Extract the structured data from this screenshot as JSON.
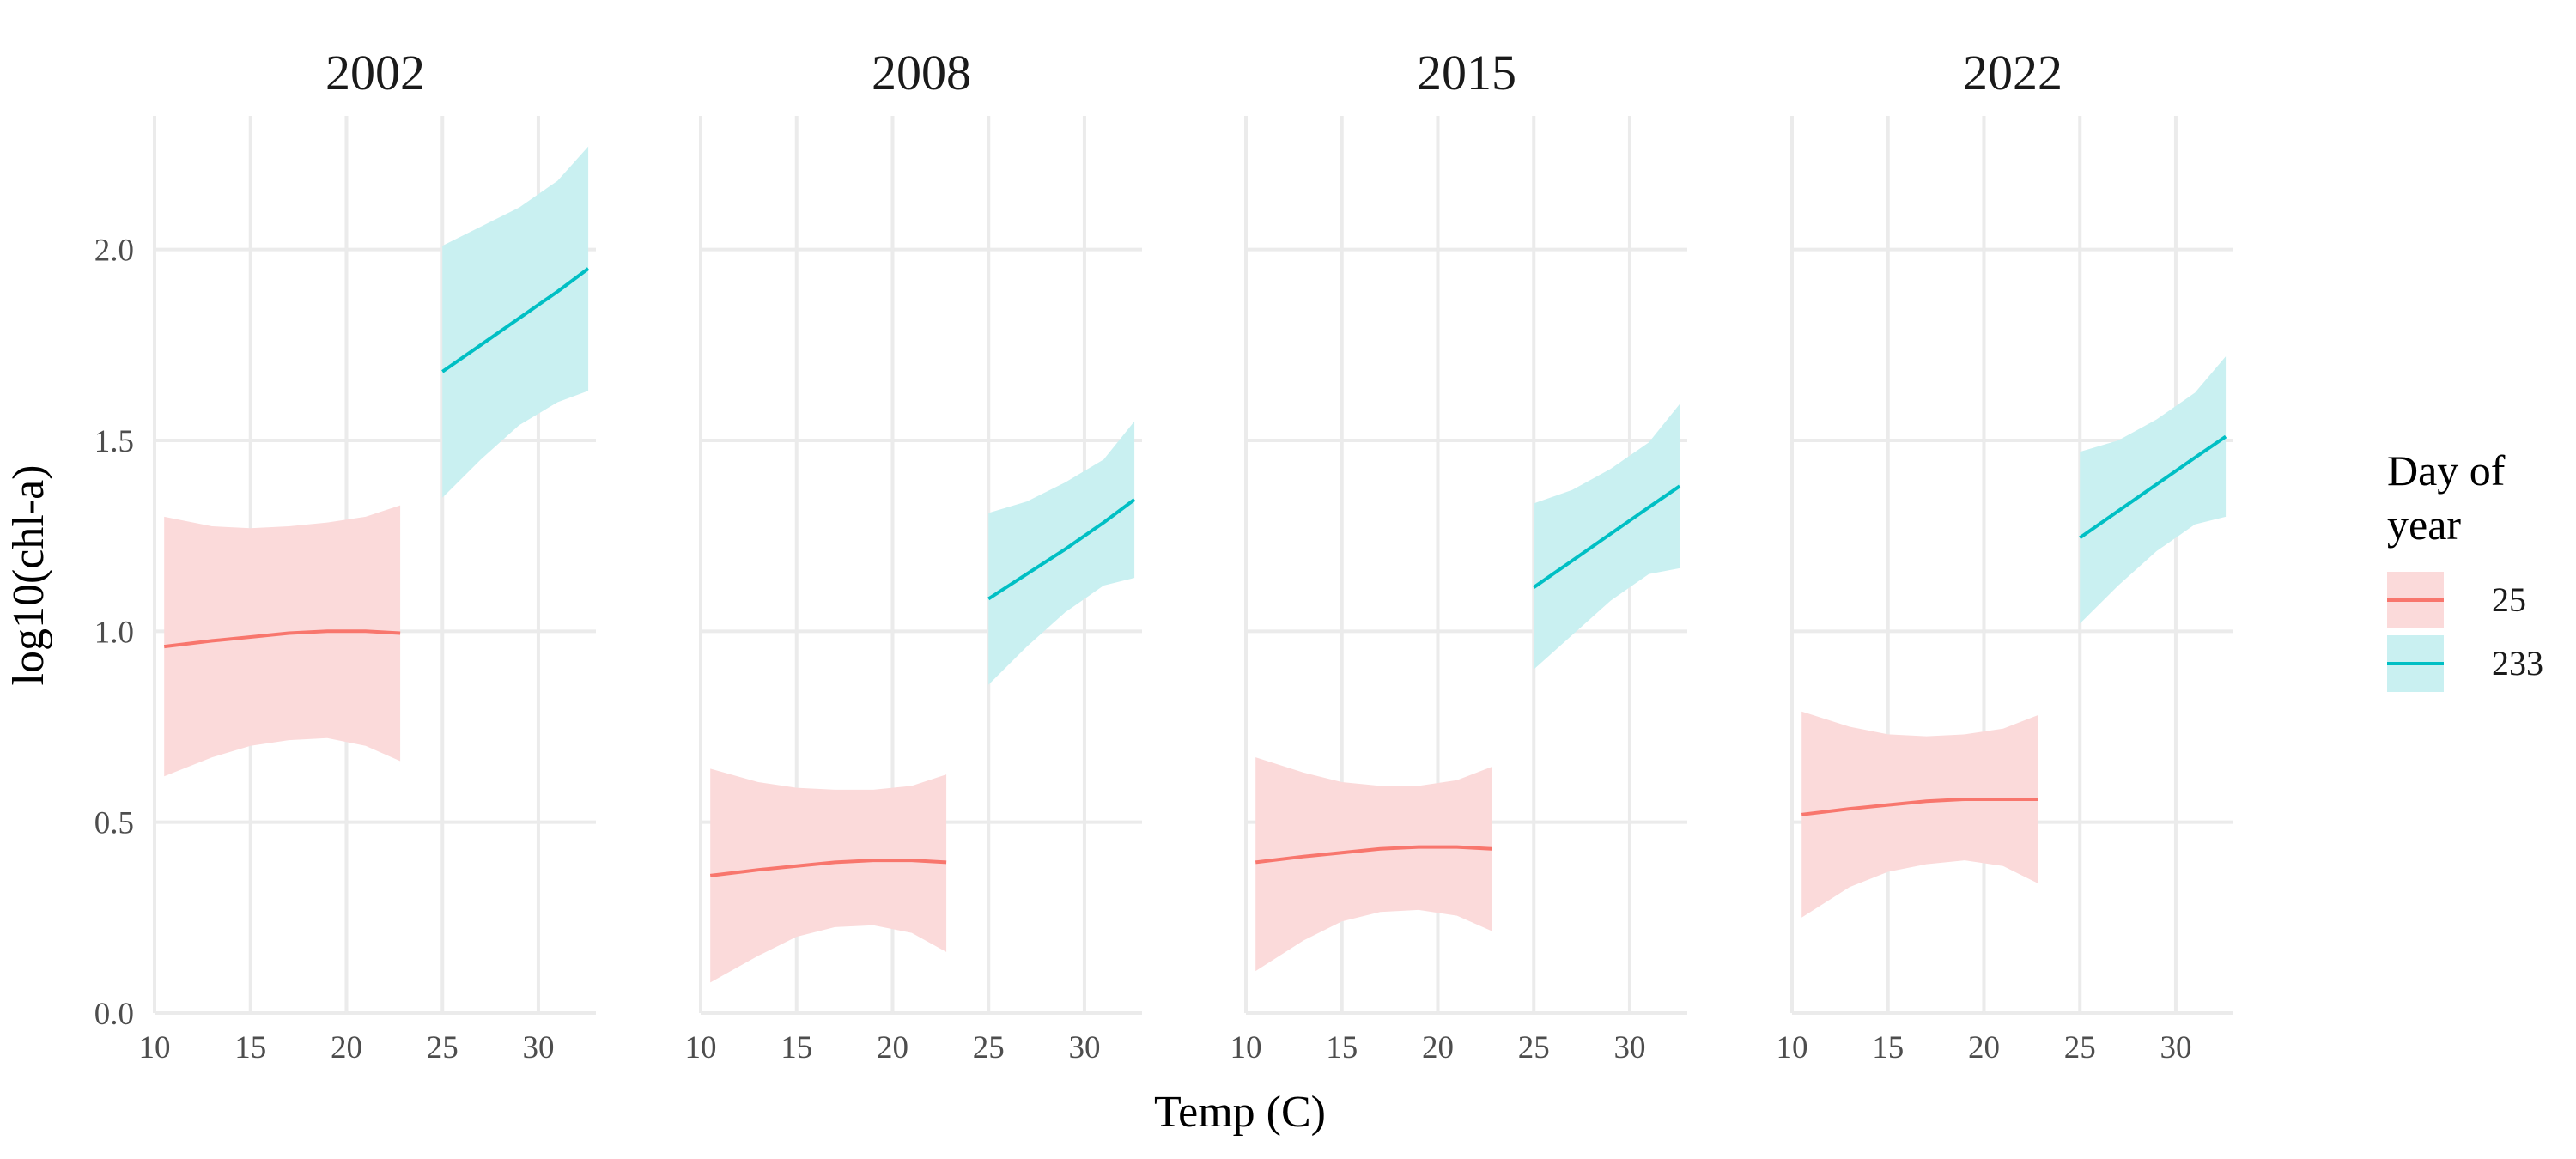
{
  "chart_data": {
    "type": "line",
    "xlabel": "Temp (C)",
    "ylabel": "log10(chl-a)",
    "xlim": [
      10,
      33
    ],
    "ylim": [
      0,
      2.35
    ],
    "x_ticks": [
      10,
      15,
      20,
      25,
      30
    ],
    "y_ticks": [
      0.0,
      0.5,
      1.0,
      1.5,
      2.0
    ],
    "y_tick_labels": [
      "0.0",
      "0.5",
      "1.0",
      "1.5",
      "2.0"
    ],
    "grid": true,
    "legend": {
      "title_lines": [
        "Day of",
        "year"
      ],
      "placement": "right",
      "entries": [
        {
          "label": "25",
          "color": "#F8766D",
          "fill": "#FBDADA"
        },
        {
          "label": "233",
          "color": "#00BFC4",
          "fill": "#C9F0F1"
        }
      ]
    },
    "panels": [
      {
        "label": "2002",
        "series": [
          {
            "legend_label": "25",
            "x": [
              10.5,
              13,
              15,
              17,
              19,
              21,
              22.8
            ],
            "y": [
              0.96,
              0.975,
              0.985,
              0.995,
              1.0,
              1.0,
              0.995
            ],
            "lower": [
              0.62,
              0.67,
              0.7,
              0.715,
              0.72,
              0.7,
              0.66
            ],
            "upper": [
              1.3,
              1.275,
              1.27,
              1.275,
              1.285,
              1.3,
              1.33
            ]
          },
          {
            "legend_label": "233",
            "x": [
              25,
              27,
              29,
              31,
              32.6
            ],
            "y": [
              1.68,
              1.75,
              1.82,
              1.89,
              1.95
            ],
            "lower": [
              1.35,
              1.45,
              1.54,
              1.6,
              1.63
            ],
            "upper": [
              2.01,
              2.06,
              2.11,
              2.18,
              2.27
            ]
          }
        ]
      },
      {
        "label": "2008",
        "series": [
          {
            "legend_label": "25",
            "x": [
              10.5,
              13,
              15,
              17,
              19,
              21,
              22.8
            ],
            "y": [
              0.36,
              0.375,
              0.385,
              0.395,
              0.4,
              0.4,
              0.395
            ],
            "lower": [
              0.08,
              0.15,
              0.2,
              0.225,
              0.23,
              0.21,
              0.16
            ],
            "upper": [
              0.64,
              0.605,
              0.59,
              0.585,
              0.585,
              0.595,
              0.625
            ]
          },
          {
            "legend_label": "233",
            "x": [
              25,
              27,
              29,
              31,
              32.6
            ],
            "y": [
              1.085,
              1.15,
              1.215,
              1.285,
              1.345
            ],
            "lower": [
              0.86,
              0.96,
              1.05,
              1.12,
              1.14
            ],
            "upper": [
              1.31,
              1.34,
              1.39,
              1.45,
              1.55
            ]
          }
        ]
      },
      {
        "label": "2015",
        "series": [
          {
            "legend_label": "25",
            "x": [
              10.5,
              13,
              15,
              17,
              19,
              21,
              22.8
            ],
            "y": [
              0.395,
              0.41,
              0.42,
              0.43,
              0.435,
              0.435,
              0.43
            ],
            "lower": [
              0.11,
              0.19,
              0.24,
              0.265,
              0.27,
              0.255,
              0.215
            ],
            "upper": [
              0.67,
              0.63,
              0.605,
              0.595,
              0.595,
              0.61,
              0.645
            ]
          },
          {
            "legend_label": "233",
            "x": [
              25,
              27,
              29,
              31,
              32.6
            ],
            "y": [
              1.115,
              1.185,
              1.255,
              1.325,
              1.38
            ],
            "lower": [
              0.9,
              0.99,
              1.08,
              1.15,
              1.165
            ],
            "upper": [
              1.335,
              1.37,
              1.425,
              1.495,
              1.595
            ]
          }
        ]
      },
      {
        "label": "2022",
        "series": [
          {
            "legend_label": "25",
            "x": [
              10.5,
              13,
              15,
              17,
              19,
              21,
              22.8
            ],
            "y": [
              0.52,
              0.535,
              0.545,
              0.555,
              0.56,
              0.56,
              0.56
            ],
            "lower": [
              0.25,
              0.33,
              0.37,
              0.39,
              0.4,
              0.385,
              0.34
            ],
            "upper": [
              0.79,
              0.75,
              0.73,
              0.725,
              0.73,
              0.745,
              0.78
            ]
          },
          {
            "legend_label": "233",
            "x": [
              25,
              27,
              29,
              31,
              32.6
            ],
            "y": [
              1.245,
              1.315,
              1.385,
              1.455,
              1.51
            ],
            "lower": [
              1.02,
              1.12,
              1.21,
              1.28,
              1.3
            ],
            "upper": [
              1.47,
              1.5,
              1.555,
              1.625,
              1.72
            ]
          }
        ]
      }
    ]
  }
}
